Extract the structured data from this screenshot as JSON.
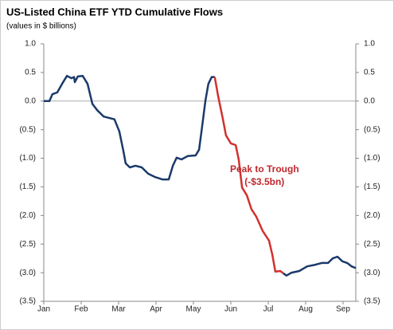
{
  "chart_data": {
    "type": "line",
    "title": "US-Listed China ETF YTD Cumulative Flows",
    "subtitle": "(values in $ billions)",
    "xlim": [
      0,
      8.34
    ],
    "xticks": [
      {
        "value": 0,
        "label": "Jan"
      },
      {
        "value": 1,
        "label": "Feb"
      },
      {
        "value": 2,
        "label": "Mar"
      },
      {
        "value": 3,
        "label": "Apr"
      },
      {
        "value": 4,
        "label": "May"
      },
      {
        "value": 5,
        "label": "Jun"
      },
      {
        "value": 6,
        "label": "Jul"
      },
      {
        "value": 7,
        "label": "Aug"
      },
      {
        "value": 8,
        "label": "Sep"
      }
    ],
    "ylim": [
      -3.5,
      1.0
    ],
    "yticks": [
      {
        "value": 1,
        "label": "1.0"
      },
      0.5,
      {
        "value": 0,
        "label": "0.0"
      },
      {
        "value": -0.5,
        "label": "(0.5)"
      },
      {
        "value": -1,
        "label": "(1.0)"
      },
      {
        "value": -1.5,
        "label": "(1.5)"
      },
      {
        "value": -2,
        "label": "(2.0)"
      },
      {
        "value": -2.5,
        "label": "(2.5)"
      },
      {
        "value": -3,
        "label": "(3.0)"
      },
      {
        "value": -3.5,
        "label": "(3.5)"
      }
    ],
    "right_axis": true,
    "zero_line": true,
    "series": [
      {
        "color": "#1b3a6b",
        "x": [
          0,
          0.15,
          0.23,
          0.36,
          0.49,
          0.62,
          0.74,
          0.81,
          0.83,
          0.91,
          1.04,
          1.17,
          1.3,
          1.43,
          1.6,
          1.89,
          2.02,
          2.13,
          2.19,
          2.3,
          2.45,
          2.62,
          2.79,
          2.98,
          3.17,
          3.34,
          3.45,
          3.55,
          3.68,
          3.85,
          4.06,
          4.15,
          4.23,
          4.32,
          4.4,
          4.49,
          4.57
        ],
        "values": [
          0,
          0,
          0.12,
          0.15,
          0.3,
          0.44,
          0.4,
          0.42,
          0.33,
          0.43,
          0.44,
          0.3,
          -0.05,
          -0.16,
          -0.27,
          -0.32,
          -0.53,
          -0.88,
          -1.09,
          -1.16,
          -1.13,
          -1.16,
          -1.27,
          -1.33,
          -1.37,
          -1.37,
          -1.13,
          -0.99,
          -1.02,
          -0.96,
          -0.95,
          -0.85,
          -0.46,
          0.01,
          0.3,
          0.42,
          0.42
        ]
      },
      {
        "color": "#d0312d",
        "x": [
          4.57,
          4.66,
          4.79,
          4.87,
          5.0,
          5.13,
          5.21,
          5.3,
          5.43,
          5.55,
          5.68,
          5.85,
          6.02,
          6.11,
          6.19,
          6.32,
          6.4
        ],
        "values": [
          0.42,
          0.09,
          -0.32,
          -0.6,
          -0.74,
          -0.77,
          -1.02,
          -1.51,
          -1.65,
          -1.89,
          -2.02,
          -2.27,
          -2.44,
          -2.69,
          -2.98,
          -2.97,
          -3.01
        ]
      },
      {
        "color": "#1b3a6b",
        "x": [
          6.4,
          6.49,
          6.62,
          6.83,
          7.04,
          7.26,
          7.43,
          7.6,
          7.72,
          7.85,
          7.98,
          8.11,
          8.23,
          8.34
        ],
        "values": [
          -3.01,
          -3.05,
          -3.0,
          -2.97,
          -2.89,
          -2.86,
          -2.83,
          -2.83,
          -2.75,
          -2.72,
          -2.8,
          -2.83,
          -2.89,
          -2.92
        ]
      }
    ],
    "annotation": {
      "lines": [
        "Peak to Trough",
        "(-$3.5bn)"
      ],
      "x": 5.9,
      "y": -1.2
    }
  }
}
